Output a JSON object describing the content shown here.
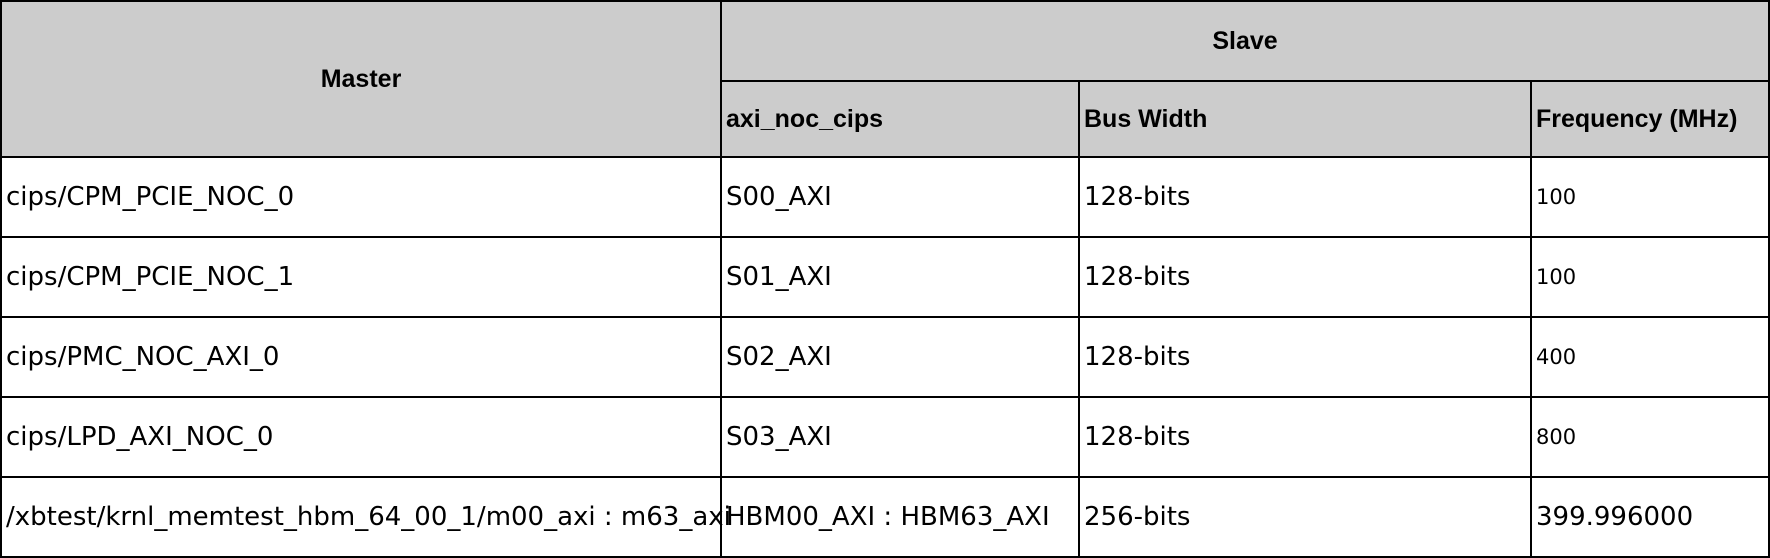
{
  "table": {
    "header": {
      "master": "Master",
      "slave": "Slave",
      "sub_columns": [
        "axi_noc_cips",
        "Bus Width",
        "Frequency (MHz)"
      ]
    },
    "rows": [
      {
        "master": "cips/CPM_PCIE_NOC_0",
        "port": "S00_AXI",
        "bus_width": "128-bits",
        "frequency": "100"
      },
      {
        "master": "cips/CPM_PCIE_NOC_1",
        "port": "S01_AXI",
        "bus_width": "128-bits",
        "frequency": "100"
      },
      {
        "master": "cips/PMC_NOC_AXI_0",
        "port": "S02_AXI",
        "bus_width": "128-bits",
        "frequency": "400"
      },
      {
        "master": "cips/LPD_AXI_NOC_0",
        "port": "S03_AXI",
        "bus_width": "128-bits",
        "frequency": "800"
      },
      {
        "master": "/xbtest/krnl_memtest_hbm_64_00_1/m00_axi : m63_axi",
        "port": "HBM00_AXI : HBM63_AXI",
        "bus_width": "256-bits",
        "frequency": "399.996000"
      }
    ],
    "colors": {
      "header_bg": "#cccccc",
      "border": "#000000",
      "cell_bg": "#ffffff"
    }
  }
}
